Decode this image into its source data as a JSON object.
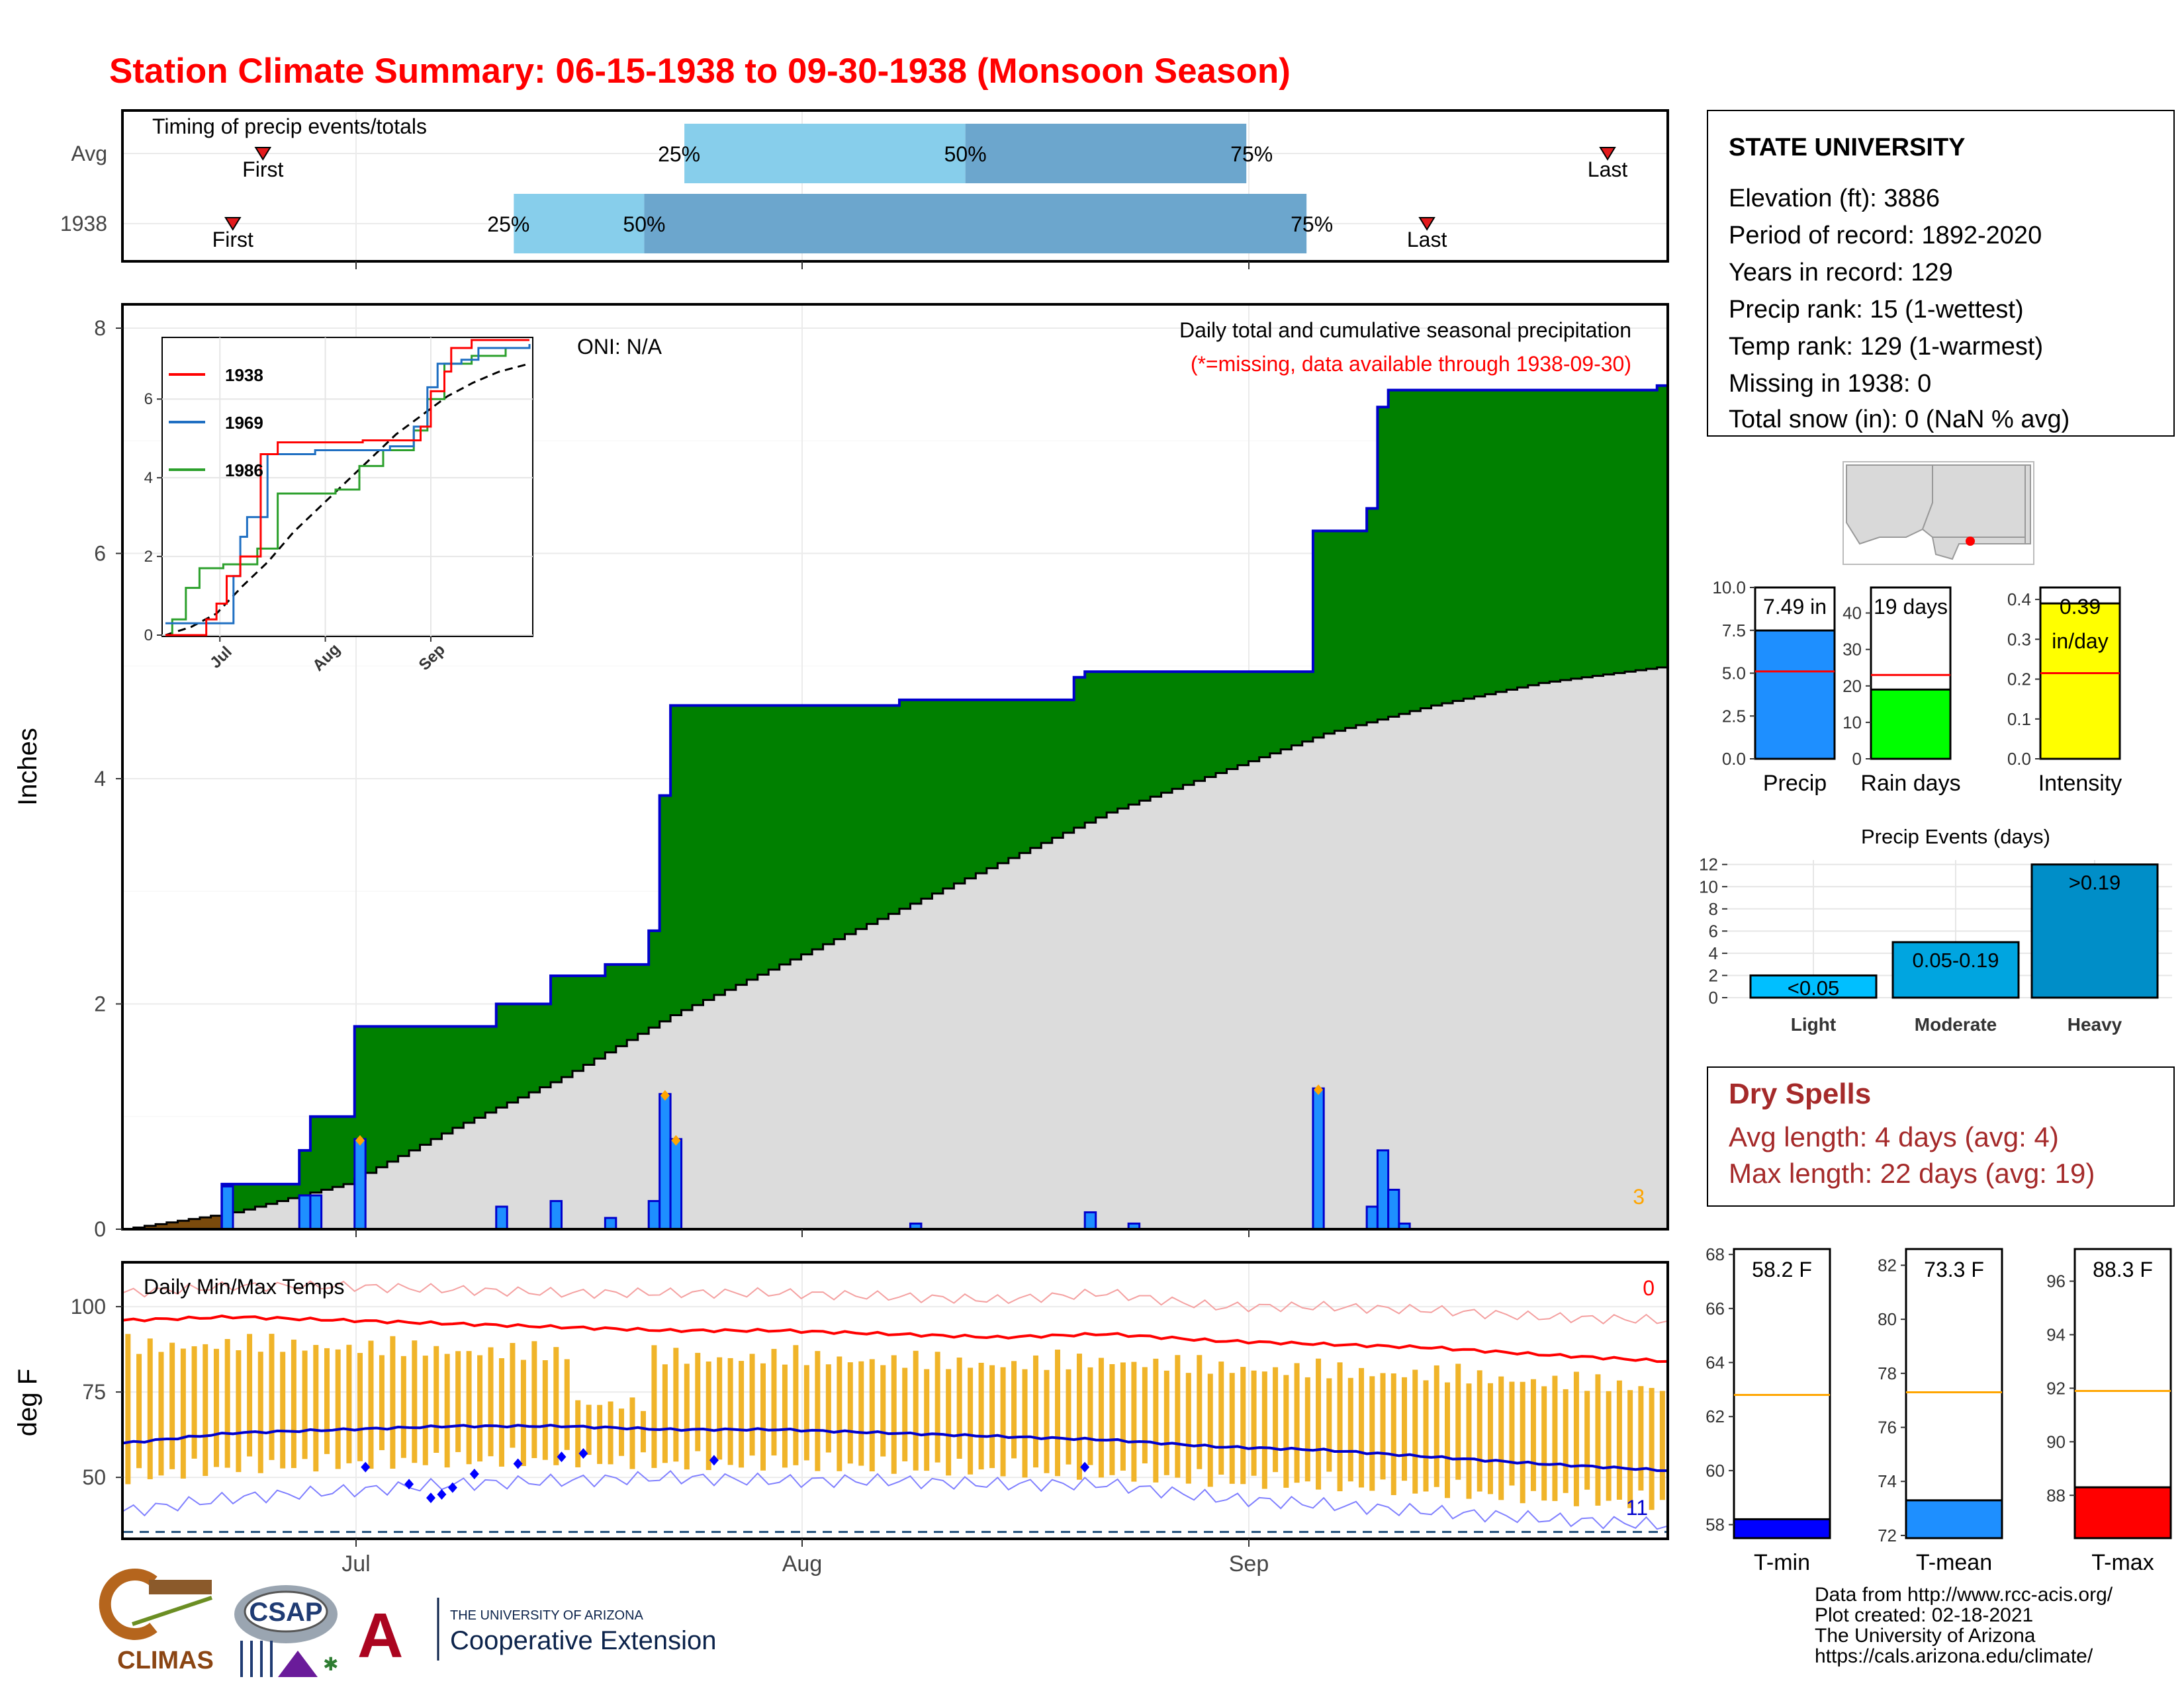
{
  "title": "Station Climate Summary: 06-15-1938 to 09-30-1938 (Monsoon Season)",
  "timing": {
    "label": "Timing of precip events/totals",
    "rows": [
      {
        "name": "Avg",
        "first_day": 7,
        "q25": 28,
        "q50": 42,
        "q75": 56,
        "last_day": 74,
        "first_label": "First",
        "last_label": "Last",
        "p25": "25%",
        "p50": "50%",
        "p75": "75%"
      },
      {
        "name": "1938",
        "first_day": 5.5,
        "q25": 19.5,
        "q50": 26,
        "q75": 59,
        "last_day": 65,
        "first_label": "First",
        "last_label": "Last",
        "p25": "25%",
        "p50": "50%",
        "p75": "75%"
      }
    ]
  },
  "main_chart": {
    "y_label": "Inches",
    "y_ticks": [
      "0",
      "2",
      "4",
      "6",
      "8"
    ],
    "x_ticks": [
      "Jul",
      "Aug",
      "Sep"
    ],
    "oni": "ONI: N/A",
    "subtitle": "Daily total and cumulative seasonal precipitation",
    "missing_note": "(*=missing, data available through 1938-09-30)",
    "corner_count": "3"
  },
  "inset": {
    "y_ticks": [
      "0",
      "2",
      "4",
      "6"
    ],
    "x_ticks": [
      "Jul",
      "Aug",
      "Sep"
    ],
    "legend": [
      {
        "name": "1938",
        "color": "#ff0000"
      },
      {
        "name": "1969",
        "color": "#1f6fc2"
      },
      {
        "name": "1986",
        "color": "#2ca02c"
      }
    ]
  },
  "station": {
    "name": "STATE UNIVERSITY",
    "lines": [
      "Elevation (ft): 3886",
      "Period of record: 1892-2020",
      "Years in record: 129",
      "Precip rank: 15 (1-wettest)",
      "Temp rank: 129 (1-warmest)",
      "Missing in 1938: 0",
      "Total snow (in): 0 (NaN % avg)"
    ]
  },
  "summary_bars": [
    {
      "name": "Precip",
      "value": 7.49,
      "avg": 5.1,
      "max": 10,
      "ticks": [
        "0.0",
        "2.5",
        "5.0",
        "7.5",
        "10.0"
      ],
      "label": "7.49 in",
      "color": "#1e8fff"
    },
    {
      "name": "Rain days",
      "value": 19,
      "avg": 23,
      "max": 47,
      "ticks": [
        "0",
        "10",
        "20",
        "30",
        "40"
      ],
      "label": "19 days",
      "color": "#00ff00"
    },
    {
      "name": "Intensity",
      "value": 0.39,
      "avg": 0.215,
      "max": 0.43,
      "ticks": [
        "0.0",
        "0.1",
        "0.2",
        "0.3",
        "0.4"
      ],
      "label": "0.39",
      "label2": "in/day",
      "color": "#ffff00"
    }
  ],
  "precip_events": {
    "title": "Precip Events (days)",
    "y_ticks": [
      "0",
      "2",
      "4",
      "6",
      "8",
      "10",
      "12"
    ],
    "bars": [
      {
        "name": "Light",
        "value": 2,
        "label": "<0.05"
      },
      {
        "name": "Moderate",
        "value": 5,
        "label": "0.05-0.19"
      },
      {
        "name": "Heavy",
        "value": 12,
        "label": ">0.19"
      }
    ]
  },
  "dry_spells": {
    "title": "Dry Spells",
    "avg_line": "Avg length: 4 days (avg: 4)",
    "max_line": "Max length: 22 days (avg: 19)"
  },
  "temp_chart": {
    "title": "Daily Min/Max Temps",
    "y_label": "deg F",
    "y_ticks": [
      "50",
      "75",
      "100"
    ],
    "hot_count": "0",
    "cold_count": "11"
  },
  "temp_bars": [
    {
      "name": "T-min",
      "value": 58.2,
      "avg": 62.8,
      "min": 57.5,
      "max": 68.2,
      "label": "58.2 F",
      "ticks": [
        "58",
        "60",
        "62",
        "64",
        "66",
        "68"
      ],
      "color": "#0000ff"
    },
    {
      "name": "T-mean",
      "value": 73.3,
      "avg": 77.3,
      "min": 71.9,
      "max": 82.6,
      "label": "73.3 F",
      "ticks": [
        "72",
        "74",
        "76",
        "78",
        "80",
        "82"
      ],
      "color": "#1e8fff"
    },
    {
      "name": "T-max",
      "value": 88.3,
      "avg": 91.9,
      "min": 86.4,
      "max": 97.2,
      "label": "88.3 F",
      "ticks": [
        "88",
        "90",
        "92",
        "94",
        "96"
      ],
      "color": "#ff0000"
    }
  ],
  "credits": [
    "Data from http://www.rcc-acis.org/",
    "Plot created: 02-18-2021",
    "The University of Arizona",
    "https://cals.arizona.edu/climate/"
  ],
  "logos": {
    "climas": "CLIMAS",
    "csap": "CSAP",
    "ua_small": "THE UNIVERSITY OF ARIZONA",
    "ua_big": "Cooperative Extension"
  },
  "chart_data": {
    "type": "area",
    "title": "Daily total and cumulative seasonal precipitation",
    "ylabel": "Inches",
    "ylim": [
      0,
      8.2
    ],
    "x_start": "1938-06-15",
    "x_end": "1938-09-30",
    "x_ticks": [
      "Jul",
      "Aug",
      "Sep"
    ],
    "cumulative_1938_inches": [
      [
        0,
        0
      ],
      [
        8,
        0
      ],
      [
        9,
        0.4
      ],
      [
        15,
        0.4
      ],
      [
        16,
        0.7
      ],
      [
        17,
        1.0
      ],
      [
        20,
        1.0
      ],
      [
        21,
        1.8
      ],
      [
        33,
        1.8
      ],
      [
        34,
        2.0
      ],
      [
        38,
        2.0
      ],
      [
        39,
        2.25
      ],
      [
        43,
        2.25
      ],
      [
        44,
        2.35
      ],
      [
        47,
        2.35
      ],
      [
        48,
        2.65
      ],
      [
        49,
        3.85
      ],
      [
        50,
        4.65
      ],
      [
        71,
        4.7
      ],
      [
        87,
        4.9
      ],
      [
        88,
        4.95
      ],
      [
        108,
        4.95
      ],
      [
        109,
        6.2
      ],
      [
        113,
        6.2
      ],
      [
        114,
        6.4
      ],
      [
        115,
        7.3
      ],
      [
        116,
        7.45
      ],
      [
        141,
        7.49
      ],
      [
        142,
        7.49
      ]
    ],
    "cumulative_average_inches": [
      [
        0,
        0
      ],
      [
        10,
        0.15
      ],
      [
        20,
        0.4
      ],
      [
        30,
        0.9
      ],
      [
        40,
        1.35
      ],
      [
        50,
        1.9
      ],
      [
        60,
        2.35
      ],
      [
        70,
        2.8
      ],
      [
        80,
        3.25
      ],
      [
        90,
        3.7
      ],
      [
        100,
        4.05
      ],
      [
        110,
        4.4
      ],
      [
        120,
        4.65
      ],
      [
        130,
        4.85
      ],
      [
        142,
        5.0
      ]
    ],
    "daily_precip_inches": [
      [
        9,
        0.38
      ],
      [
        16,
        0.3
      ],
      [
        17,
        0.3
      ],
      [
        21,
        0.8
      ],
      [
        34,
        0.2
      ],
      [
        39,
        0.25
      ],
      [
        44,
        0.1
      ],
      [
        48,
        0.25
      ],
      [
        49,
        1.2
      ],
      [
        50,
        0.8
      ],
      [
        72,
        0.05
      ],
      [
        88,
        0.15
      ],
      [
        92,
        0.05
      ],
      [
        109,
        1.25
      ],
      [
        114,
        0.2
      ],
      [
        115,
        0.7
      ],
      [
        116,
        0.35
      ],
      [
        117,
        0.05
      ]
    ],
    "temps": {
      "x": [
        0,
        10,
        20,
        30,
        40,
        50,
        60,
        70,
        80,
        90,
        100,
        110,
        120,
        130,
        142
      ],
      "normal_max_f": [
        96,
        97,
        96,
        95,
        94,
        93,
        93,
        92,
        91,
        92,
        90,
        89,
        88,
        86,
        84
      ],
      "normal_min_f": [
        60,
        63,
        64,
        65,
        65,
        64,
        64,
        63,
        62,
        61,
        59,
        58,
        56,
        54,
        52
      ],
      "record_high_f": [
        104,
        106,
        106,
        105,
        104,
        104,
        104,
        103,
        102,
        104,
        100,
        100,
        99,
        97,
        96
      ],
      "record_low_f": [
        40,
        44,
        46,
        48,
        49,
        50,
        49,
        49,
        48,
        48,
        44,
        42,
        40,
        38,
        36
      ]
    }
  }
}
